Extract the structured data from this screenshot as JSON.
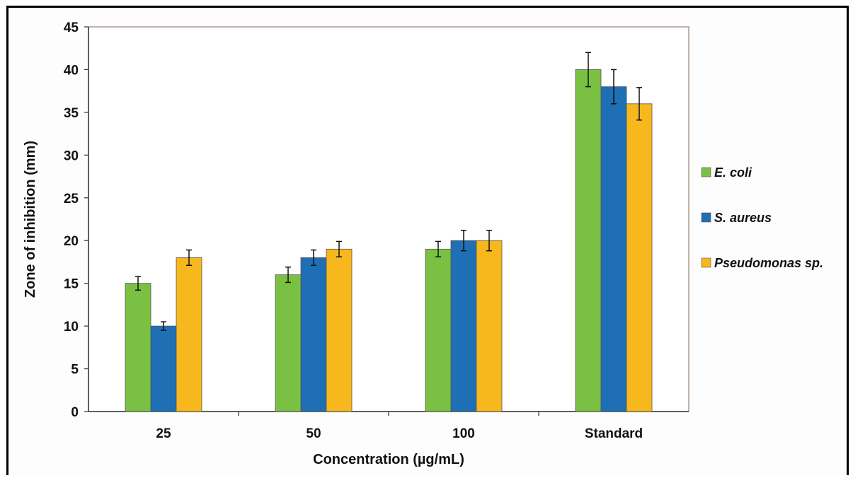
{
  "chart_data": {
    "type": "bar",
    "categories": [
      "25",
      "50",
      "100",
      "Standard"
    ],
    "series": [
      {
        "name": "E. coli",
        "color": "#7ac143",
        "values": [
          15,
          16,
          19,
          40
        ],
        "errors": [
          0.8,
          0.9,
          0.9,
          2.0
        ]
      },
      {
        "name": "S. aureus",
        "color": "#1f6fb5",
        "values": [
          10,
          18,
          20,
          38
        ],
        "errors": [
          0.5,
          0.9,
          1.2,
          2.0
        ]
      },
      {
        "name": "Pseudomonas sp.",
        "color": "#f7b81e",
        "values": [
          18,
          19,
          20,
          36
        ],
        "errors": [
          0.9,
          0.9,
          1.2,
          1.9
        ]
      }
    ],
    "xlabel": "Concentration (µg/mL)",
    "ylabel": "Zone of inhibition (mm)",
    "ylim": [
      0,
      45
    ],
    "yticks": [
      0,
      5,
      10,
      15,
      20,
      25,
      30,
      35,
      40,
      45
    ],
    "grid": false,
    "legend_position": "right"
  }
}
